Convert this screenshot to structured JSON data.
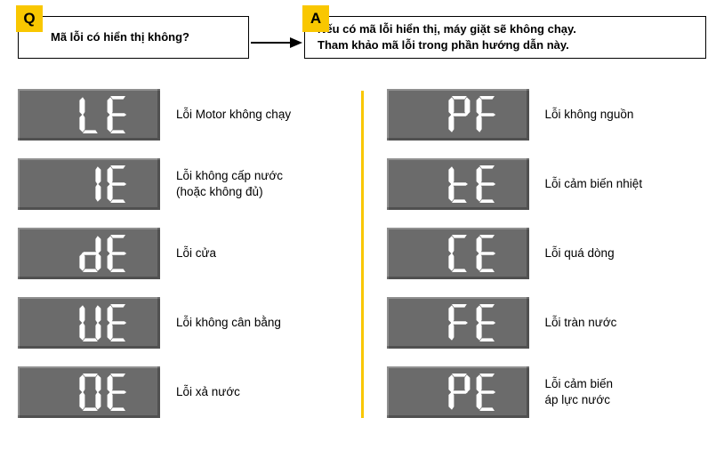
{
  "qa": {
    "q_tag": "Q",
    "a_tag": "A",
    "q_text": "Mã lỗi có hiển thị không?",
    "a_line1": "Nếu có mã lỗi hiển thị, máy giặt sẽ không chạy.",
    "a_line2": "Tham khảo mã lỗi trong phần hướng dẫn này."
  },
  "lcd_bg": "#6b6b6b",
  "segment_color": "#ffffff",
  "accent_color": "#f9c700",
  "left_codes": [
    {
      "code": "LE",
      "label": "Lỗi Motor không chạy",
      "sub": ""
    },
    {
      "code": "IE",
      "label": "Lỗi không cấp nước",
      "sub": "(hoặc không đủ)"
    },
    {
      "code": "dE",
      "label": "Lỗi cửa",
      "sub": ""
    },
    {
      "code": "UE",
      "label": "Lỗi không cân bằng",
      "sub": ""
    },
    {
      "code": "OE",
      "label": "Lỗi xả nước",
      "sub": ""
    }
  ],
  "right_codes": [
    {
      "code": "PF",
      "label": "Lỗi không nguồn",
      "sub": ""
    },
    {
      "code": "tE",
      "label": "Lỗi cảm biến nhiệt",
      "sub": ""
    },
    {
      "code": "CE",
      "label": "Lỗi quá dòng",
      "sub": ""
    },
    {
      "code": "FE",
      "label": "Lỗi tràn nước",
      "sub": ""
    },
    {
      "code": "PE",
      "label": "Lỗi cảm biến",
      "sub": "áp lực nước"
    }
  ]
}
